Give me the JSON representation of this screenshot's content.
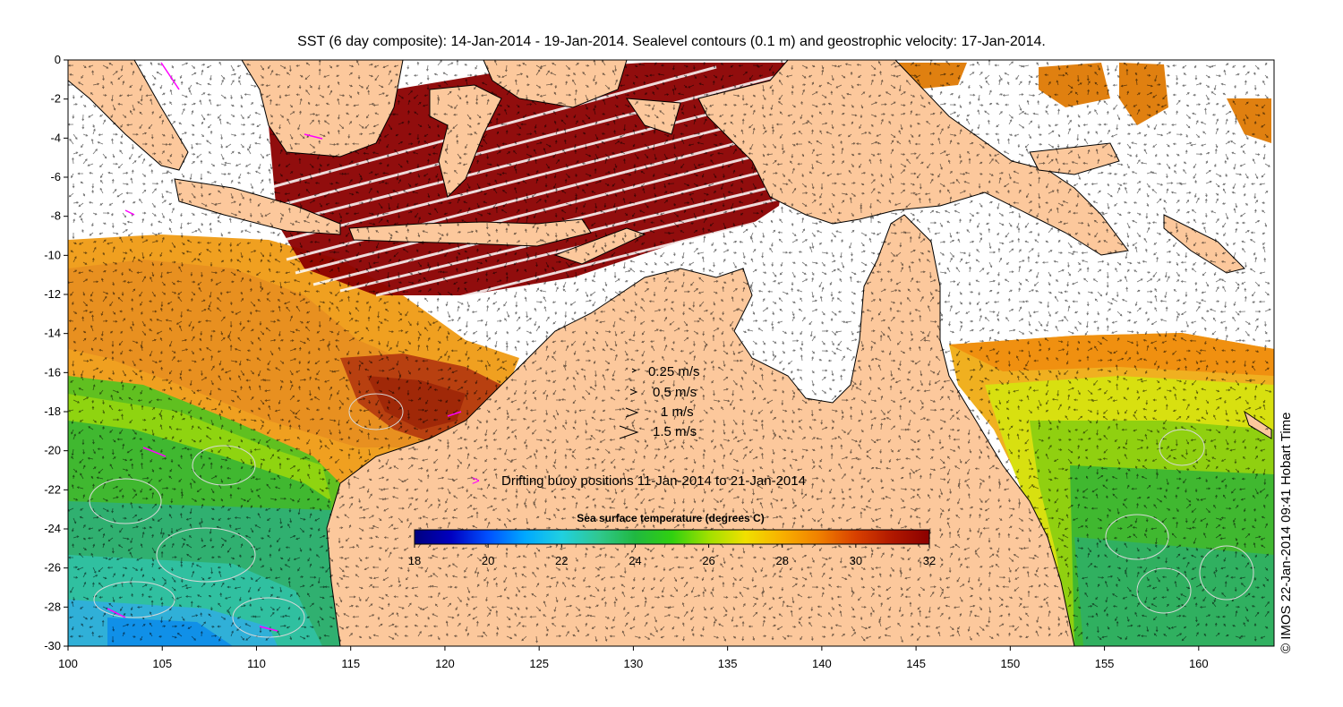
{
  "title": "SST (6 day composite): 14-Jan-2014 - 19-Jan-2014. Sealevel contours (0.1 m) and geostrophic velocity: 17-Jan-2014.",
  "copyright": "© IMOS 22-Jan-2014 09:41 Hobart Time",
  "axes": {
    "x_ticks": [
      "100",
      "105",
      "110",
      "115",
      "120",
      "125",
      "130",
      "135",
      "140",
      "145",
      "150",
      "155",
      "160"
    ],
    "y_ticks": [
      "0",
      "-2",
      "-4",
      "-6",
      "-8",
      "-10",
      "-12",
      "-14",
      "-16",
      "-18",
      "-20",
      "-22",
      "-24",
      "-26",
      "-28",
      "-30"
    ],
    "lon_range": [
      100,
      164
    ],
    "lat_range": [
      -30,
      0
    ]
  },
  "velocity_legend": [
    {
      "label": "0.25 m/s",
      "speed": 0.25
    },
    {
      "label": "0.5 m/s",
      "speed": 0.5
    },
    {
      "label": "1 m/s",
      "speed": 1
    },
    {
      "label": "1.5 m/s",
      "speed": 1.5
    }
  ],
  "buoy_legend": {
    "symbol": ">",
    "label": "Drifting buoy positions 11-Jan-2014 to 21-Jan-2014",
    "color": "#ff00ff"
  },
  "colorbar": {
    "title": "Sea surface temperature (degrees C)",
    "ticks": [
      "18",
      "20",
      "22",
      "24",
      "26",
      "28",
      "30",
      "32"
    ],
    "range": [
      18,
      32
    ],
    "colors": [
      "#00007f",
      "#0000c0",
      "#0050ff",
      "#00a8ff",
      "#20d0e0",
      "#30c890",
      "#20b840",
      "#30d010",
      "#a0e000",
      "#f0e000",
      "#f8b000",
      "#f08000",
      "#d84000",
      "#b01800",
      "#8b0000"
    ]
  },
  "land_color": "#fcc89c"
}
